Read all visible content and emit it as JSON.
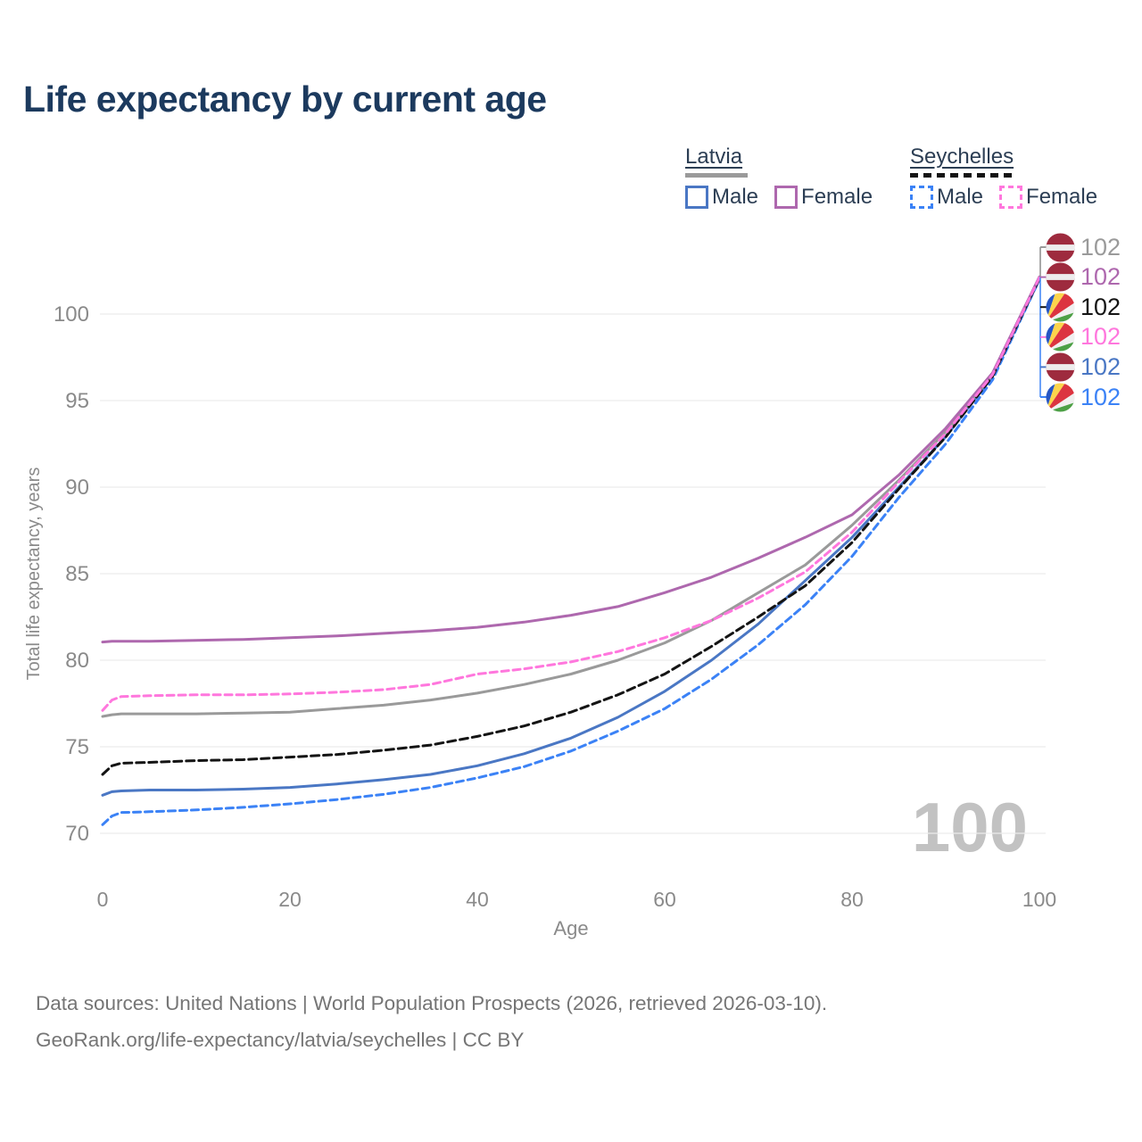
{
  "title": "Life expectancy by current age",
  "age_indicator": "100",
  "legend": {
    "groups": [
      {
        "label": "Latvia",
        "line_style": "solid",
        "underline_color": "#9a9a9a",
        "items": [
          {
            "label": "Male",
            "color": "#4a77c4",
            "dash": false
          },
          {
            "label": "Female",
            "color": "#ae68ae",
            "dash": false
          }
        ]
      },
      {
        "label": "Seychelles",
        "line_style": "dashed",
        "underline_color": "#141414",
        "items": [
          {
            "label": "Male",
            "color": "#3b82f6",
            "dash": true
          },
          {
            "label": "Female",
            "color": "#ff77dd",
            "dash": true
          }
        ]
      }
    ]
  },
  "footer": {
    "line1": "Data sources: United Nations | World Population Prospects (2026, retrieved 2026-03-10).",
    "line2": "GeoRank.org/life-expectancy/latvia/seychelles | CC BY"
  },
  "chart_data": {
    "type": "line",
    "title": "Life expectancy by current age",
    "xlabel": "Age",
    "ylabel": "Total life expectancy, years",
    "x_ticks": [
      0,
      20,
      40,
      60,
      80,
      100
    ],
    "y_ticks": [
      70,
      75,
      80,
      85,
      90,
      95,
      100
    ],
    "xlim": [
      0,
      100
    ],
    "ylim": [
      69.5,
      103
    ],
    "grid": "horizontal",
    "legend_position": "top-right",
    "age_cursor_label": "100",
    "x": [
      0,
      1,
      2,
      5,
      10,
      15,
      20,
      25,
      30,
      35,
      40,
      45,
      50,
      55,
      60,
      65,
      70,
      75,
      80,
      85,
      90,
      95,
      100
    ],
    "series": [
      {
        "name": "Latvia Total",
        "country": "Latvia",
        "sex": "Total",
        "color": "#9a9a9a",
        "line": "solid",
        "flag": "latvia",
        "end_label": "102",
        "row": 0,
        "values": [
          76.75,
          76.85,
          76.9,
          76.9,
          76.9,
          76.95,
          77.0,
          77.2,
          77.4,
          77.7,
          78.1,
          78.6,
          79.2,
          80.0,
          81.0,
          82.3,
          83.9,
          85.5,
          87.8,
          90.4,
          93.2,
          96.5,
          102.1
        ]
      },
      {
        "name": "Latvia Female",
        "country": "Latvia",
        "sex": "Female",
        "color": "#ae68ae",
        "line": "solid",
        "flag": "latvia",
        "end_label": "102",
        "row": 1,
        "values": [
          81.05,
          81.1,
          81.1,
          81.1,
          81.15,
          81.2,
          81.3,
          81.4,
          81.55,
          81.7,
          81.9,
          82.2,
          82.6,
          83.1,
          83.9,
          84.8,
          85.9,
          87.1,
          88.4,
          90.7,
          93.4,
          96.6,
          102.15
        ]
      },
      {
        "name": "Latvia Male",
        "country": "Latvia",
        "sex": "Male",
        "color": "#4a77c4",
        "line": "solid",
        "flag": "latvia",
        "end_label": "102",
        "row": 4,
        "values": [
          72.2,
          72.4,
          72.45,
          72.5,
          72.5,
          72.55,
          72.65,
          72.85,
          73.1,
          73.4,
          73.9,
          74.6,
          75.5,
          76.7,
          78.2,
          80.0,
          82.1,
          84.6,
          87.1,
          90.0,
          92.9,
          96.4,
          102.0
        ]
      },
      {
        "name": "Seychelles Total",
        "country": "Seychelles",
        "sex": "Total",
        "color": "#141414",
        "line": "dashed",
        "flag": "seychelles",
        "end_label": "102",
        "row": 2,
        "values": [
          73.4,
          73.9,
          74.05,
          74.1,
          74.2,
          74.25,
          74.4,
          74.55,
          74.8,
          75.1,
          75.6,
          76.2,
          77.0,
          78.0,
          79.2,
          80.8,
          82.5,
          84.3,
          86.8,
          89.9,
          92.9,
          96.4,
          102.05
        ]
      },
      {
        "name": "Seychelles Female",
        "country": "Seychelles",
        "sex": "Female",
        "color": "#ff77dd",
        "line": "dashed",
        "flag": "seychelles",
        "end_label": "102",
        "row": 3,
        "values": [
          77.1,
          77.7,
          77.9,
          77.95,
          78.0,
          78.0,
          78.05,
          78.15,
          78.3,
          78.6,
          79.2,
          79.5,
          79.9,
          80.5,
          81.3,
          82.3,
          83.6,
          85.1,
          87.4,
          90.3,
          93.1,
          96.5,
          102.1
        ]
      },
      {
        "name": "Seychelles Male",
        "country": "Seychelles",
        "sex": "Male",
        "color": "#3b82f6",
        "line": "dashed",
        "flag": "seychelles",
        "end_label": "102",
        "row": 5,
        "values": [
          70.5,
          71.0,
          71.2,
          71.25,
          71.35,
          71.5,
          71.7,
          71.95,
          72.25,
          72.65,
          73.2,
          73.85,
          74.75,
          75.9,
          77.2,
          78.9,
          80.9,
          83.2,
          86.0,
          89.4,
          92.5,
          96.2,
          102.0
        ]
      }
    ]
  }
}
